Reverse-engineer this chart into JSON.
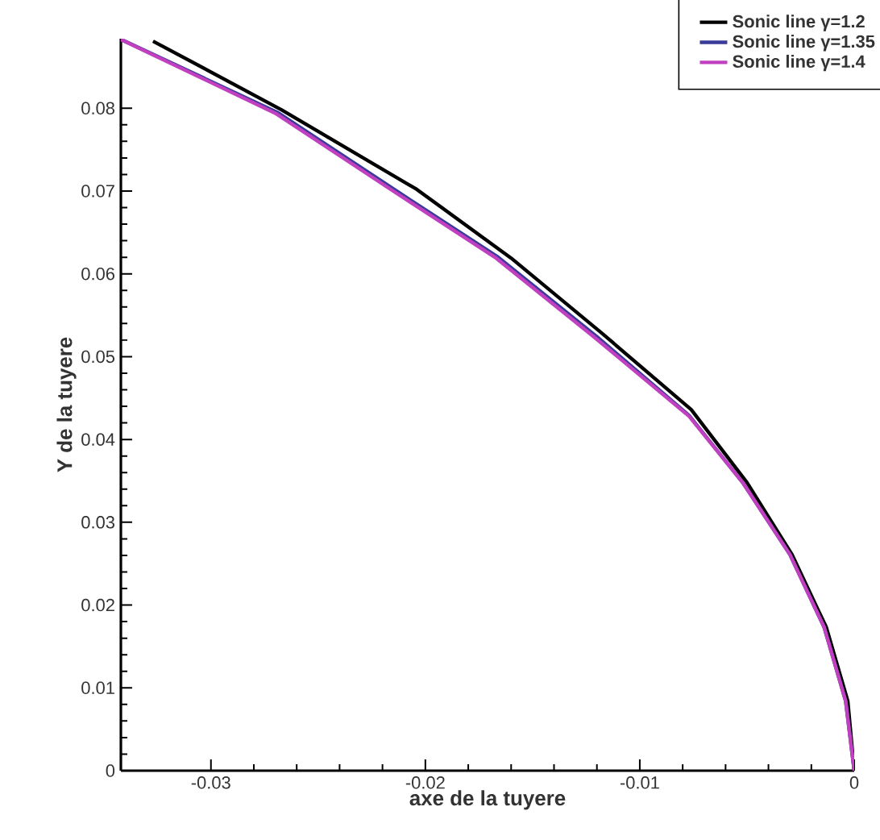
{
  "chart_data": {
    "type": "line",
    "xlabel": "axe de la tuyere",
    "ylabel": "Y de la tuyere",
    "xlim": [
      -0.0342,
      0
    ],
    "ylim": [
      0,
      0.0884
    ],
    "xticks": [
      -0.03,
      -0.02,
      -0.01,
      0
    ],
    "yticks": [
      0,
      0.01,
      0.02,
      0.03,
      0.04,
      0.05,
      0.06,
      0.07,
      0.08
    ],
    "legend": "top right",
    "grid": false,
    "marker": "none",
    "line_style": "solid",
    "series": [
      {
        "name": "Sonic line γ=1.2",
        "color": "#000000",
        "x": [
          -0.0327,
          -0.0267,
          -0.0204,
          -0.016,
          -0.0118,
          -0.0076,
          -0.005,
          -0.0029,
          -0.0013,
          -0.0003,
          0
        ],
        "values": [
          0.0881,
          0.0798,
          0.0702,
          0.0619,
          0.0529,
          0.0436,
          0.0348,
          0.0261,
          0.0173,
          0.0084,
          0
        ]
      },
      {
        "name": "Sonic line γ=1.35",
        "color": "#3a3a9a",
        "x": [
          -0.0341,
          -0.0269,
          -0.0214,
          -0.0166,
          -0.012,
          -0.0077,
          -0.0052,
          -0.003,
          -0.0014,
          -0.0004,
          0
        ],
        "values": [
          0.0882,
          0.0795,
          0.0701,
          0.062,
          0.0524,
          0.0429,
          0.0348,
          0.0261,
          0.0173,
          0.0084,
          0
        ]
      },
      {
        "name": "Sonic line γ=1.4",
        "color": "#c040c0",
        "x": [
          -0.0342,
          -0.027,
          -0.0215,
          -0.0167,
          -0.0121,
          -0.0077,
          -0.0052,
          -0.003,
          -0.0014,
          -0.0004,
          0
        ],
        "values": [
          0.0883,
          0.0794,
          0.07,
          0.0619,
          0.0523,
          0.0428,
          0.0348,
          0.0261,
          0.0173,
          0.0084,
          0
        ]
      }
    ]
  }
}
